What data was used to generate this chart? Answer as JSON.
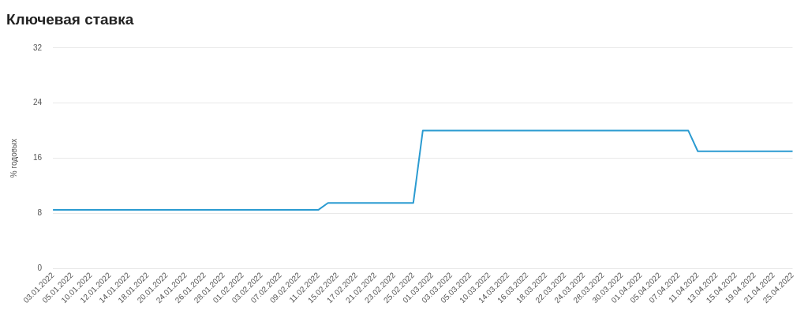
{
  "chart_data": {
    "type": "line",
    "title": "Ключевая ставка",
    "ylabel": "% годовых",
    "categories": [
      "03.01.2022",
      null,
      "05.01.2022",
      null,
      "10.01.2022",
      null,
      "12.01.2022",
      null,
      "14.01.2022",
      null,
      "18.01.2022",
      null,
      "20.01.2022",
      null,
      "24.01.2022",
      null,
      "26.01.2022",
      null,
      "28.01.2022",
      null,
      "01.02.2022",
      null,
      "03.02.2022",
      null,
      "07.02.2022",
      null,
      "09.02.2022",
      null,
      "11.02.2022",
      null,
      "15.02.2022",
      null,
      "17.02.2022",
      null,
      "21.02.2022",
      null,
      "23.02.2022",
      null,
      "25.02.2022",
      null,
      "01.03.2022",
      null,
      "03.03.2022",
      null,
      "05.03.2022",
      null,
      "10.03.2022",
      null,
      "14.03.2022",
      null,
      "16.03.2022",
      null,
      "18.03.2022",
      null,
      "22.03.2022",
      null,
      "24.03.2022",
      null,
      "28.03.2022",
      null,
      "30.03.2022",
      null,
      "01.04.2022",
      null,
      "05.04.2022",
      null,
      "07.04.2022",
      null,
      "11.04.2022",
      null,
      "13.04.2022",
      null,
      "15.04.2022",
      null,
      "19.04.2022",
      null,
      "21.04.2022",
      null,
      "25.04.2022"
    ],
    "series": [
      {
        "color": "#2b9bd1",
        "values": [
          8.5,
          8.5,
          8.5,
          8.5,
          8.5,
          8.5,
          8.5,
          8.5,
          8.5,
          8.5,
          8.5,
          8.5,
          8.5,
          8.5,
          8.5,
          8.5,
          8.5,
          8.5,
          8.5,
          8.5,
          8.5,
          8.5,
          8.5,
          8.5,
          8.5,
          8.5,
          8.5,
          8.5,
          8.5,
          9.5,
          9.5,
          9.5,
          9.5,
          9.5,
          9.5,
          9.5,
          9.5,
          9.5,
          9.5,
          20,
          20,
          20,
          20,
          20,
          20,
          20,
          20,
          20,
          20,
          20,
          20,
          20,
          20,
          20,
          20,
          20,
          20,
          20,
          20,
          20,
          20,
          20,
          20,
          20,
          20,
          20,
          20,
          20,
          17,
          17,
          17,
          17,
          17,
          17,
          17,
          17,
          17,
          17,
          17
        ]
      }
    ],
    "ylim": [
      0,
      32
    ],
    "yticks": [
      0,
      8,
      16,
      24,
      32
    ],
    "grid": "y",
    "legend": false,
    "marker": "none",
    "line_style": "solid"
  }
}
